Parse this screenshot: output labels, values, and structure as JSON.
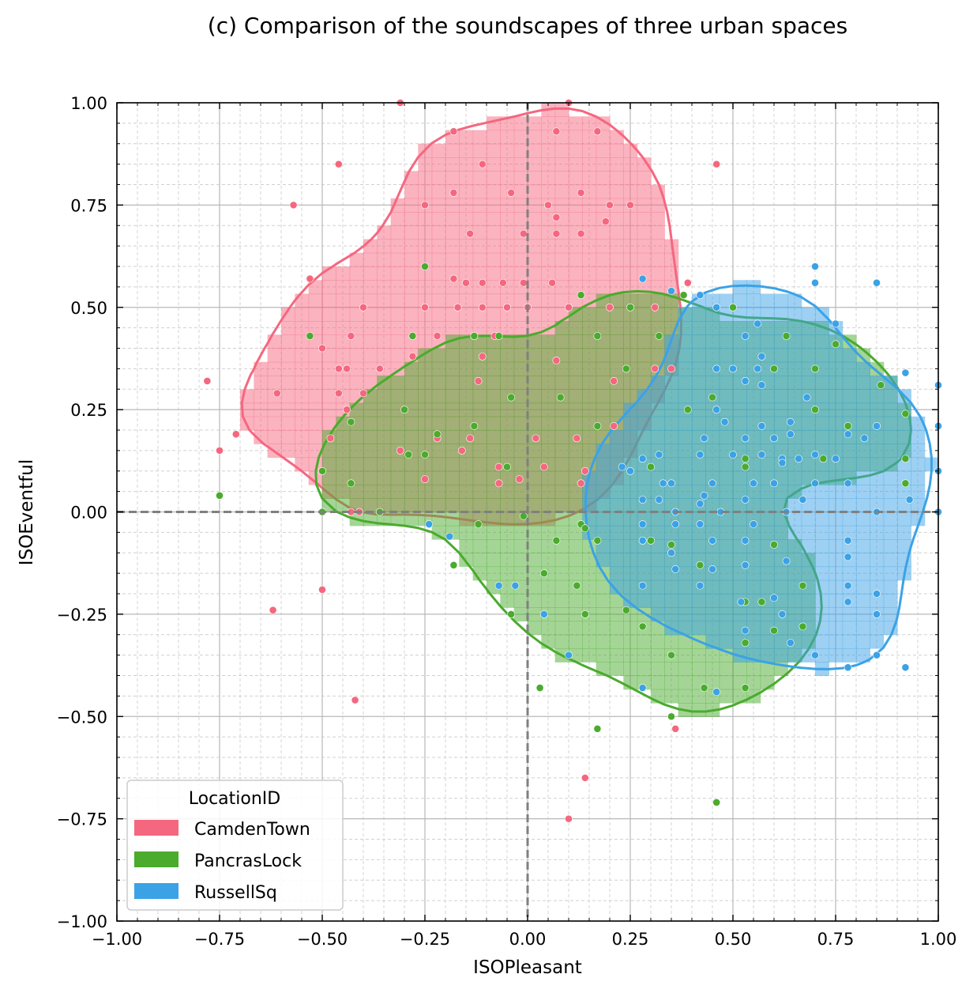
{
  "chart_data": {
    "type": "scatter",
    "title": "(c) Comparison of the soundscapes of three urban spaces",
    "xlabel": "ISOPleasant",
    "ylabel": "ISOEventful",
    "xlim": [
      -1.0,
      1.0
    ],
    "ylim": [
      -1.0,
      1.0
    ],
    "xticks": [
      "−1.00",
      "−0.75",
      "−0.50",
      "−0.25",
      "0.00",
      "0.25",
      "0.50",
      "0.75",
      "1.00"
    ],
    "yticks": [
      "1.00",
      "0.75",
      "0.50",
      "0.25",
      "0.00",
      "−0.25",
      "−0.50",
      "−0.75",
      "−1.00"
    ],
    "grid": true,
    "legend": {
      "title": "LocationID",
      "placement": "lower-left",
      "entries": [
        "CamdenTown",
        "PancrasLock",
        "RussellSq"
      ]
    },
    "colors": {
      "CamdenTown": "#f5677f",
      "PancrasLock": "#4aab2d",
      "RussellSq": "#3ba2e6"
    },
    "series": [
      {
        "name": "CamdenTown",
        "points": [
          [
            -0.31,
            1.0
          ],
          [
            0.1,
            1.0
          ],
          [
            -0.18,
            0.93
          ],
          [
            0.07,
            0.93
          ],
          [
            0.17,
            0.93
          ],
          [
            -0.46,
            0.85
          ],
          [
            -0.11,
            0.85
          ],
          [
            0.46,
            0.85
          ],
          [
            -0.57,
            0.75
          ],
          [
            -0.25,
            0.75
          ],
          [
            0.2,
            0.75
          ],
          [
            0.25,
            0.75
          ],
          [
            -0.18,
            0.78
          ],
          [
            -0.04,
            0.78
          ],
          [
            0.13,
            0.78
          ],
          [
            0.05,
            0.75
          ],
          [
            0.07,
            0.72
          ],
          [
            0.19,
            0.71
          ],
          [
            -0.14,
            0.68
          ],
          [
            -0.01,
            0.68
          ],
          [
            0.07,
            0.68
          ],
          [
            0.13,
            0.68
          ],
          [
            -0.53,
            0.57
          ],
          [
            -0.18,
            0.57
          ],
          [
            -0.15,
            0.56
          ],
          [
            -0.11,
            0.56
          ],
          [
            -0.06,
            0.56
          ],
          [
            -0.01,
            0.56
          ],
          [
            0.06,
            0.56
          ],
          [
            0.13,
            0.53
          ],
          [
            0.39,
            0.56
          ],
          [
            -0.4,
            0.5
          ],
          [
            -0.25,
            0.5
          ],
          [
            -0.17,
            0.5
          ],
          [
            -0.11,
            0.5
          ],
          [
            -0.05,
            0.5
          ],
          [
            0.0,
            0.5
          ],
          [
            0.1,
            0.5
          ],
          [
            0.2,
            0.5
          ],
          [
            0.31,
            0.5
          ],
          [
            -0.43,
            0.43
          ],
          [
            -0.28,
            0.43
          ],
          [
            -0.22,
            0.43
          ],
          [
            -0.13,
            0.43
          ],
          [
            -0.08,
            0.43
          ],
          [
            -0.5,
            0.4
          ],
          [
            -0.28,
            0.38
          ],
          [
            -0.11,
            0.38
          ],
          [
            0.07,
            0.37
          ],
          [
            -0.46,
            0.35
          ],
          [
            -0.44,
            0.35
          ],
          [
            -0.36,
            0.35
          ],
          [
            0.31,
            0.35
          ],
          [
            0.35,
            0.35
          ],
          [
            -0.78,
            0.32
          ],
          [
            -0.12,
            0.32
          ],
          [
            0.21,
            0.32
          ],
          [
            -0.61,
            0.29
          ],
          [
            -0.46,
            0.29
          ],
          [
            -0.4,
            0.29
          ],
          [
            -0.44,
            0.25
          ],
          [
            -0.71,
            0.19
          ],
          [
            -0.48,
            0.18
          ],
          [
            -0.22,
            0.18
          ],
          [
            -0.14,
            0.18
          ],
          [
            0.02,
            0.18
          ],
          [
            0.12,
            0.18
          ],
          [
            0.21,
            0.21
          ],
          [
            -0.75,
            0.15
          ],
          [
            -0.31,
            0.15
          ],
          [
            -0.16,
            0.15
          ],
          [
            -0.07,
            0.11
          ],
          [
            -0.07,
            0.07
          ],
          [
            0.04,
            0.11
          ],
          [
            -0.25,
            0.08
          ],
          [
            -0.02,
            0.08
          ],
          [
            0.14,
            0.1
          ],
          [
            0.13,
            0.07
          ],
          [
            -0.43,
            0.0
          ],
          [
            -0.41,
            0.0
          ],
          [
            -0.5,
            -0.19
          ],
          [
            -0.62,
            -0.24
          ],
          [
            -0.42,
            -0.46
          ],
          [
            0.36,
            -0.53
          ],
          [
            0.14,
            -0.65
          ],
          [
            0.1,
            -0.75
          ]
        ]
      },
      {
        "name": "PancrasLock",
        "points": [
          [
            -0.53,
            0.43
          ],
          [
            -0.28,
            0.43
          ],
          [
            -0.25,
            0.6
          ],
          [
            -0.13,
            0.43
          ],
          [
            -0.07,
            0.43
          ],
          [
            0.13,
            0.53
          ],
          [
            0.17,
            0.43
          ],
          [
            0.25,
            0.5
          ],
          [
            0.32,
            0.43
          ],
          [
            0.38,
            0.53
          ],
          [
            0.5,
            0.5
          ],
          [
            0.63,
            0.43
          ],
          [
            0.75,
            0.41
          ],
          [
            -0.43,
            0.22
          ],
          [
            -0.3,
            0.25
          ],
          [
            -0.22,
            0.19
          ],
          [
            -0.13,
            0.21
          ],
          [
            -0.29,
            0.14
          ],
          [
            -0.25,
            0.14
          ],
          [
            -0.05,
            0.11
          ],
          [
            -0.04,
            0.28
          ],
          [
            0.08,
            0.28
          ],
          [
            0.17,
            0.21
          ],
          [
            0.24,
            0.35
          ],
          [
            0.39,
            0.25
          ],
          [
            0.45,
            0.28
          ],
          [
            0.6,
            0.35
          ],
          [
            0.7,
            0.35
          ],
          [
            0.7,
            0.25
          ],
          [
            0.78,
            0.21
          ],
          [
            0.86,
            0.31
          ],
          [
            0.92,
            0.24
          ],
          [
            0.92,
            0.13
          ],
          [
            0.92,
            0.07
          ],
          [
            0.72,
            0.13
          ],
          [
            0.53,
            0.13
          ],
          [
            0.53,
            0.11
          ],
          [
            0.3,
            0.11
          ],
          [
            -0.5,
            0.1
          ],
          [
            -0.43,
            0.07
          ],
          [
            -0.75,
            0.04
          ],
          [
            -0.5,
            0.0
          ],
          [
            -0.36,
            0.0
          ],
          [
            -0.01,
            -0.01
          ],
          [
            -0.12,
            -0.03
          ],
          [
            0.13,
            -0.03
          ],
          [
            0.14,
            -0.04
          ],
          [
            0.17,
            -0.07
          ],
          [
            0.07,
            -0.07
          ],
          [
            -0.18,
            -0.13
          ],
          [
            0.04,
            -0.15
          ],
          [
            0.12,
            -0.18
          ],
          [
            0.28,
            -0.07
          ],
          [
            0.3,
            -0.07
          ],
          [
            0.35,
            -0.08
          ],
          [
            0.42,
            -0.13
          ],
          [
            0.6,
            -0.08
          ],
          [
            0.67,
            -0.18
          ],
          [
            0.53,
            -0.22
          ],
          [
            0.57,
            -0.22
          ],
          [
            0.67,
            -0.28
          ],
          [
            0.6,
            -0.29
          ],
          [
            -0.04,
            -0.25
          ],
          [
            0.14,
            -0.25
          ],
          [
            0.24,
            -0.24
          ],
          [
            0.28,
            -0.28
          ],
          [
            0.35,
            -0.35
          ],
          [
            0.53,
            -0.32
          ],
          [
            0.03,
            -0.43
          ],
          [
            0.43,
            -0.43
          ],
          [
            0.53,
            -0.43
          ],
          [
            0.35,
            -0.5
          ],
          [
            0.17,
            -0.53
          ],
          [
            0.46,
            -0.71
          ]
        ]
      },
      {
        "name": "RussellSq",
        "points": [
          [
            0.28,
            0.57
          ],
          [
            0.35,
            0.54
          ],
          [
            0.42,
            0.53
          ],
          [
            0.46,
            0.5
          ],
          [
            0.7,
            0.6
          ],
          [
            0.7,
            0.56
          ],
          [
            0.85,
            0.56
          ],
          [
            0.56,
            0.46
          ],
          [
            0.75,
            0.46
          ],
          [
            0.53,
            0.43
          ],
          [
            0.57,
            0.38
          ],
          [
            0.5,
            0.35
          ],
          [
            0.56,
            0.35
          ],
          [
            0.46,
            0.35
          ],
          [
            0.53,
            0.32
          ],
          [
            0.57,
            0.31
          ],
          [
            0.68,
            0.28
          ],
          [
            0.64,
            0.22
          ],
          [
            0.64,
            0.19
          ],
          [
            0.78,
            0.19
          ],
          [
            0.82,
            0.18
          ],
          [
            0.85,
            0.21
          ],
          [
            0.92,
            0.34
          ],
          [
            1.0,
            0.31
          ],
          [
            1.0,
            0.21
          ],
          [
            1.0,
            0.1
          ],
          [
            1.0,
            0.0
          ],
          [
            0.46,
            0.25
          ],
          [
            0.48,
            0.22
          ],
          [
            0.43,
            0.18
          ],
          [
            0.53,
            0.18
          ],
          [
            0.57,
            0.21
          ],
          [
            0.6,
            0.18
          ],
          [
            0.62,
            0.13
          ],
          [
            0.66,
            0.13
          ],
          [
            0.28,
            0.13
          ],
          [
            0.32,
            0.14
          ],
          [
            0.42,
            0.14
          ],
          [
            0.5,
            0.14
          ],
          [
            0.57,
            0.14
          ],
          [
            0.62,
            0.12
          ],
          [
            0.7,
            0.14
          ],
          [
            0.75,
            0.13
          ],
          [
            0.23,
            0.11
          ],
          [
            0.25,
            0.1
          ],
          [
            0.33,
            0.07
          ],
          [
            0.35,
            0.07
          ],
          [
            0.43,
            0.04
          ],
          [
            0.45,
            0.07
          ],
          [
            0.55,
            0.07
          ],
          [
            0.6,
            0.07
          ],
          [
            0.7,
            0.07
          ],
          [
            0.78,
            0.07
          ],
          [
            0.85,
            0.0
          ],
          [
            0.93,
            0.03
          ],
          [
            0.28,
            0.03
          ],
          [
            0.32,
            0.03
          ],
          [
            0.36,
            0.0
          ],
          [
            0.42,
            0.02
          ],
          [
            0.47,
            0.0
          ],
          [
            0.53,
            0.03
          ],
          [
            0.63,
            0.0
          ],
          [
            0.67,
            0.03
          ],
          [
            0.28,
            -0.03
          ],
          [
            0.36,
            -0.03
          ],
          [
            0.42,
            -0.03
          ],
          [
            0.55,
            -0.03
          ],
          [
            0.28,
            -0.07
          ],
          [
            0.35,
            -0.1
          ],
          [
            0.45,
            -0.07
          ],
          [
            0.53,
            -0.07
          ],
          [
            0.78,
            -0.07
          ],
          [
            0.78,
            -0.11
          ],
          [
            0.36,
            -0.14
          ],
          [
            0.45,
            -0.14
          ],
          [
            0.53,
            -0.13
          ],
          [
            0.63,
            -0.12
          ],
          [
            0.28,
            -0.18
          ],
          [
            0.42,
            -0.18
          ],
          [
            0.6,
            -0.21
          ],
          [
            0.52,
            -0.22
          ],
          [
            0.62,
            -0.25
          ],
          [
            0.78,
            -0.18
          ],
          [
            0.78,
            -0.22
          ],
          [
            0.85,
            -0.2
          ],
          [
            0.85,
            -0.25
          ],
          [
            -0.24,
            -0.03
          ],
          [
            -0.19,
            -0.06
          ],
          [
            -0.07,
            -0.18
          ],
          [
            -0.03,
            -0.18
          ],
          [
            0.04,
            -0.25
          ],
          [
            0.1,
            -0.35
          ],
          [
            0.28,
            -0.43
          ],
          [
            0.46,
            -0.44
          ],
          [
            0.53,
            -0.29
          ],
          [
            0.64,
            -0.32
          ],
          [
            0.7,
            -0.35
          ],
          [
            0.78,
            -0.38
          ],
          [
            0.85,
            -0.35
          ],
          [
            0.92,
            -0.38
          ]
        ]
      }
    ]
  }
}
